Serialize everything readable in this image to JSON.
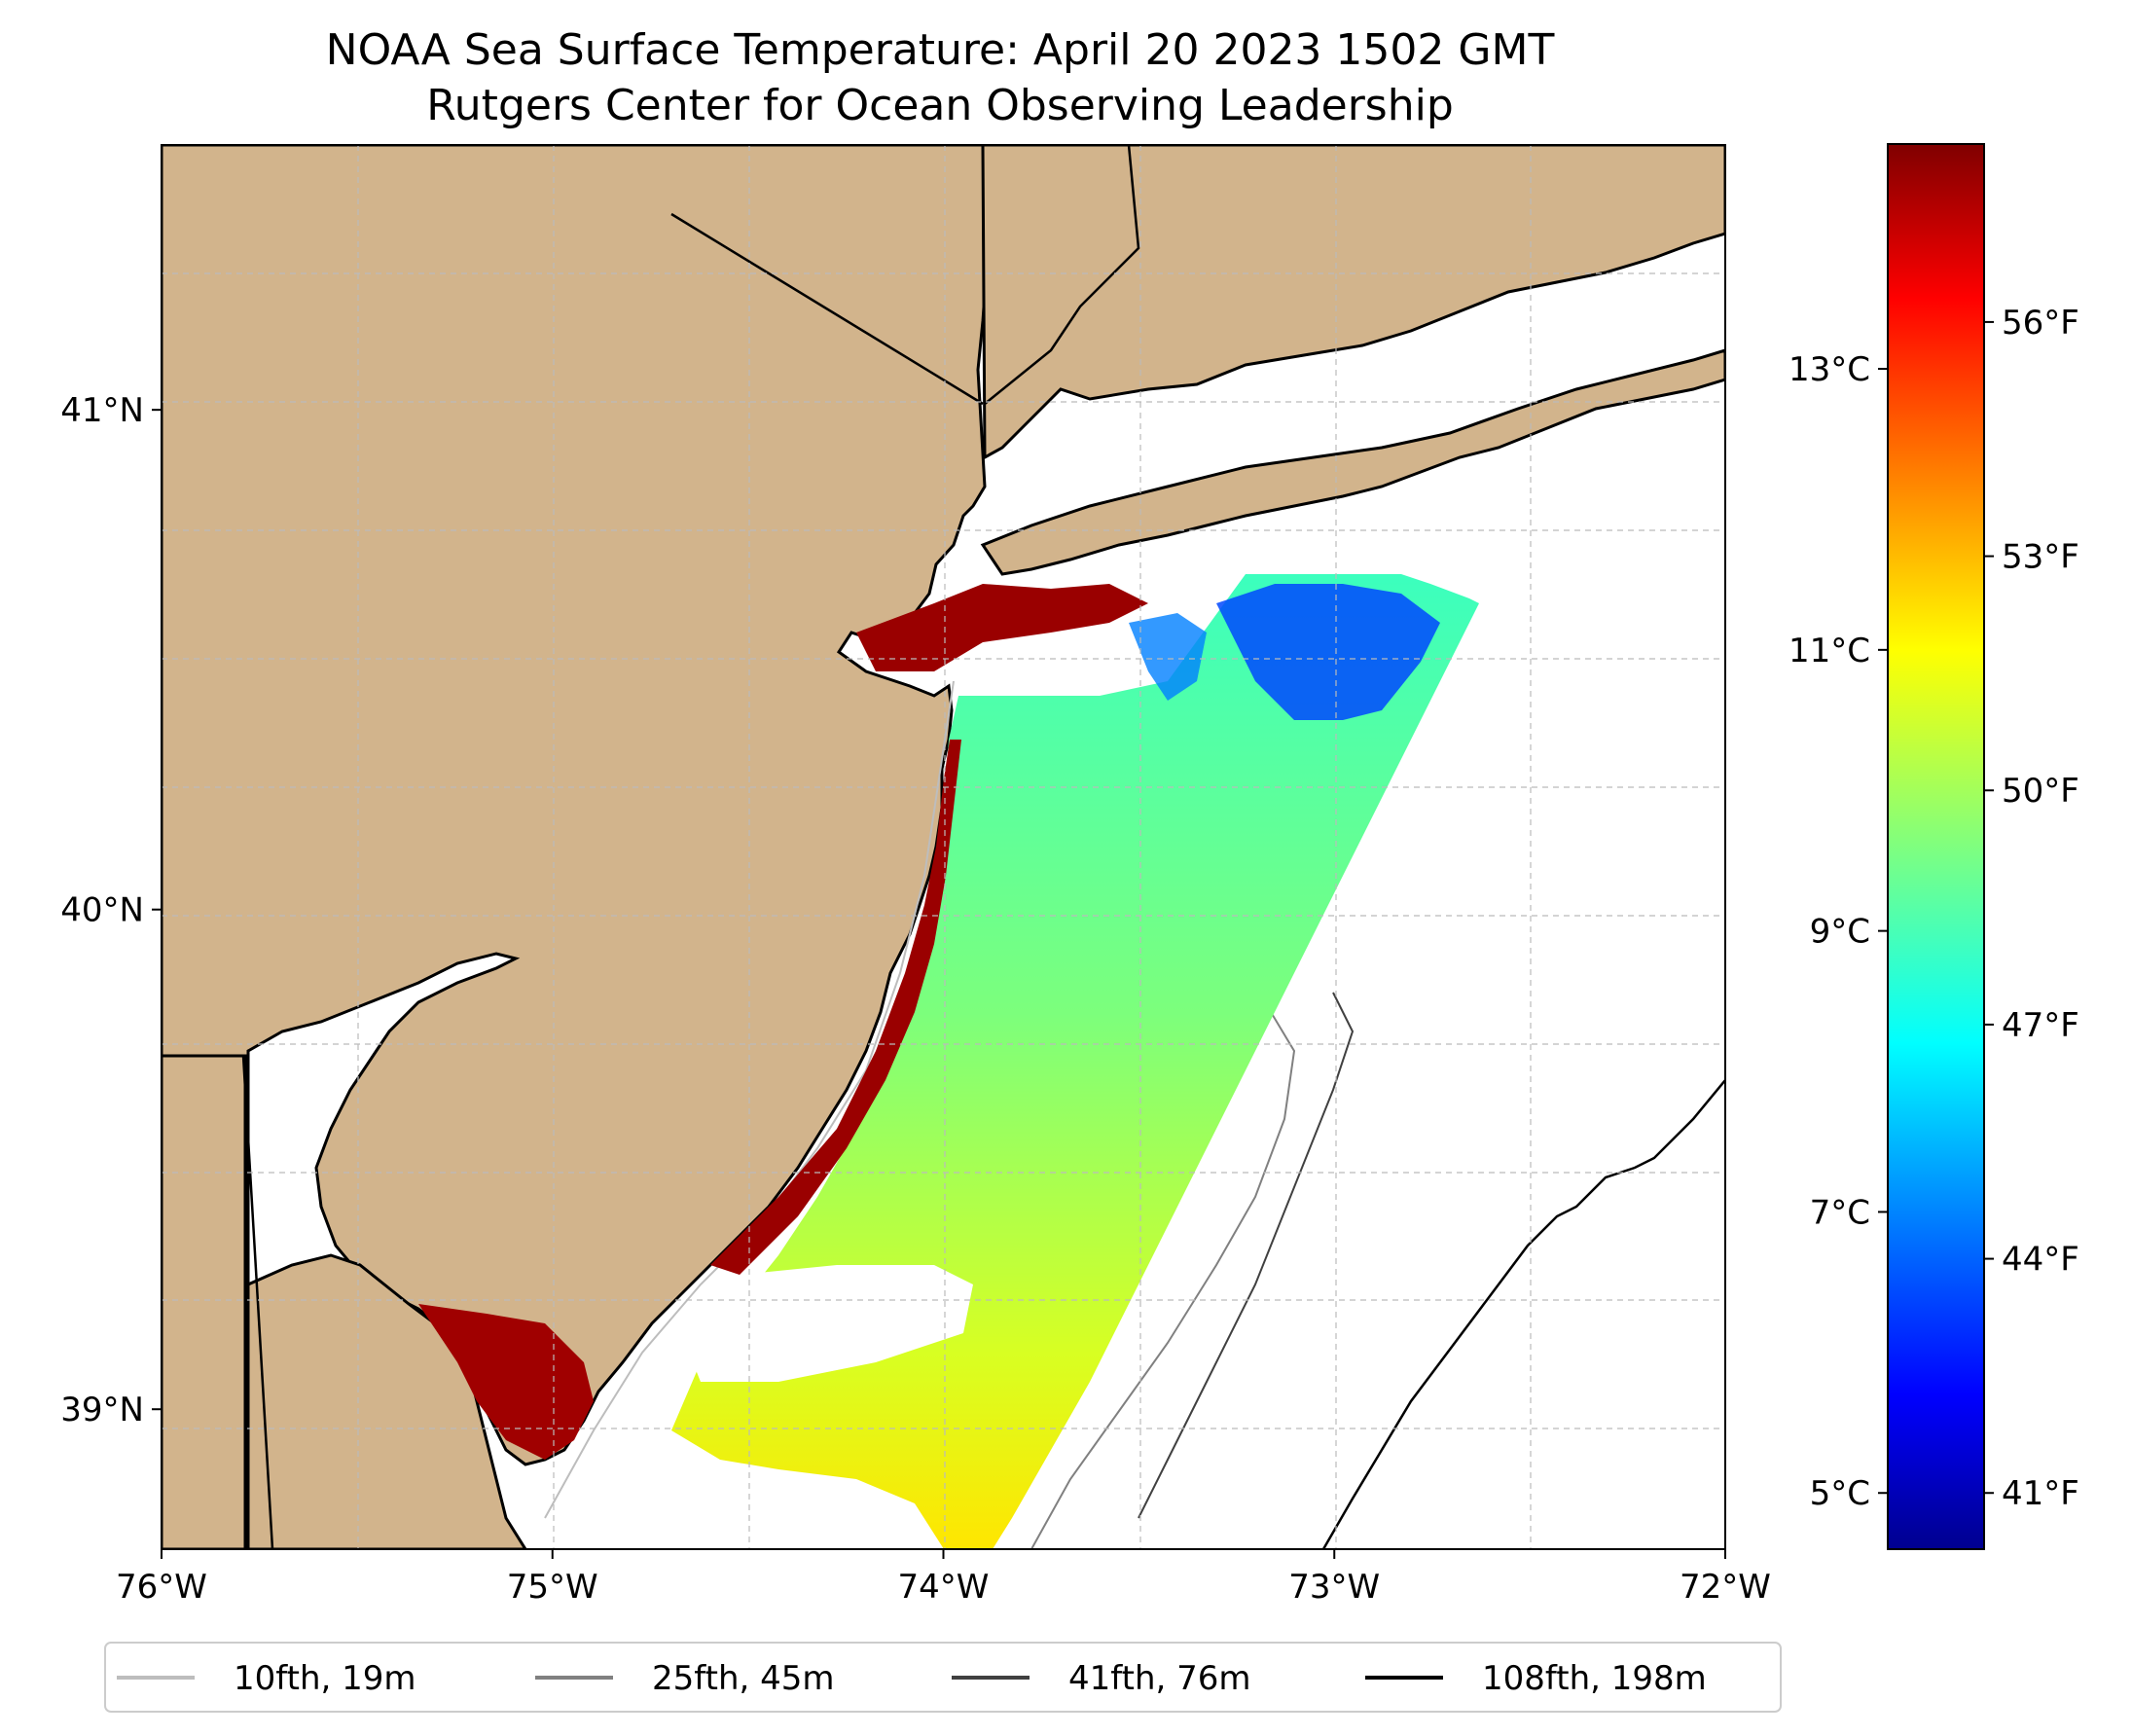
{
  "figure": {
    "title_line1": "NOAA Sea Surface Temperature: April 20 2023 1502 GMT",
    "title_line2": "Rutgers Center for Ocean Observing Leadership"
  },
  "map": {
    "lon_range": [
      -76.0,
      -72.0
    ],
    "lat_range": [
      38.72,
      41.53
    ],
    "lon_ticks": [
      {
        "value": -76,
        "label": "76°W"
      },
      {
        "value": -75,
        "label": "75°W"
      },
      {
        "value": -74,
        "label": "74°W"
      },
      {
        "value": -73,
        "label": "73°W"
      },
      {
        "value": -72,
        "label": "72°W"
      }
    ],
    "lat_ticks": [
      {
        "value": 39,
        "label": "39°N"
      },
      {
        "value": 40,
        "label": "40°N"
      },
      {
        "value": 41,
        "label": "41°N"
      }
    ],
    "grid": true,
    "land_color": "#D2B48C",
    "water_color": "#FFFFFF"
  },
  "colorbar": {
    "colormap": "jet",
    "range_celsius": [
      4.6,
      14.6
    ],
    "celsius_ticks": [
      {
        "value": 5,
        "label": "5°C"
      },
      {
        "value": 7,
        "label": "7°C"
      },
      {
        "value": 9,
        "label": "9°C"
      },
      {
        "value": 11,
        "label": "11°C"
      },
      {
        "value": 13,
        "label": "13°C"
      }
    ],
    "fahrenheit_ticks": [
      {
        "value": 41,
        "label": "41°F"
      },
      {
        "value": 44,
        "label": "44°F"
      },
      {
        "value": 47,
        "label": "47°F"
      },
      {
        "value": 50,
        "label": "50°F"
      },
      {
        "value": 53,
        "label": "53°F"
      },
      {
        "value": 56,
        "label": "56°F"
      }
    ]
  },
  "legend": {
    "placement": "bottom",
    "entries": [
      {
        "label": "10fth, 19m",
        "color": "#BDBDBD"
      },
      {
        "label": "25fth, 45m",
        "color": "#808080"
      },
      {
        "label": "41fth, 76m",
        "color": "#404040"
      },
      {
        "label": "108fth, 198m",
        "color": "#000000"
      }
    ]
  },
  "colors": {
    "cold": "#00008F",
    "warm": "#800000",
    "swath_mid": "#3DFFC2"
  }
}
